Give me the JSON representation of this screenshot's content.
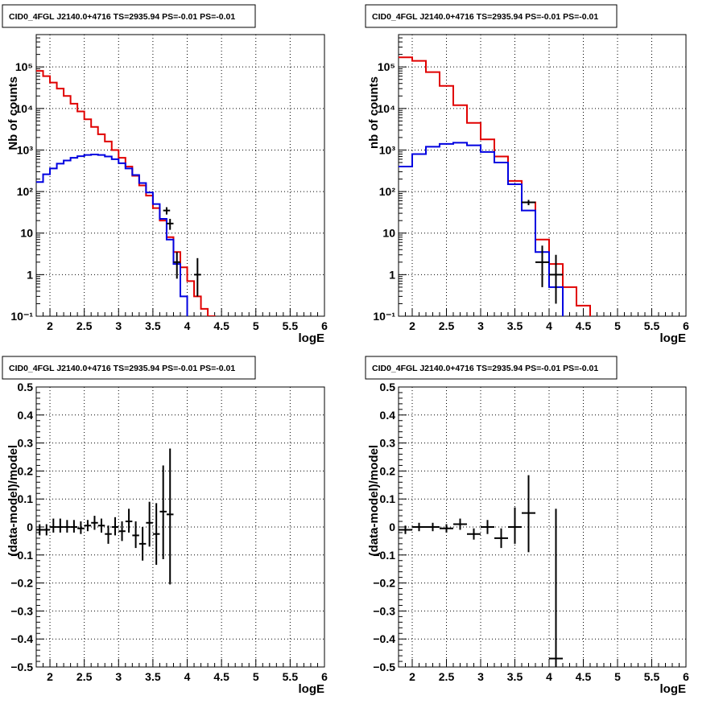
{
  "colors": {
    "data": "#000000",
    "model": "#e00000",
    "source": "#0000e0",
    "grid": "#000000"
  },
  "chart_data": [
    {
      "type": "step-histogram",
      "title": "CID0_4FGL J2140.0+4716 TS=2935.94 PS=-0.01 PS=-0.01",
      "xlabel": "logE",
      "ylabel": "Nb of counts",
      "log_y": true,
      "xlim": [
        1.8,
        6.0
      ],
      "ylim": [
        0.1,
        600000
      ],
      "x_ticks": [
        2,
        2.5,
        3,
        3.5,
        4,
        4.5,
        5,
        5.5,
        6
      ],
      "x_tick_labels": [
        "2",
        "2.5",
        "3",
        "3.5",
        "4",
        "4.5",
        "5",
        "5.5",
        "6"
      ],
      "y_ticks": [
        0.1,
        1,
        10,
        100,
        1000,
        10000,
        100000
      ],
      "y_tick_labels": [
        "10⁻¹",
        "1",
        "10",
        "10²",
        "10³",
        "10⁴",
        "10⁵"
      ],
      "grid": true,
      "bin_edges": [
        1.8,
        1.9,
        2.0,
        2.1,
        2.2,
        2.3,
        2.4,
        2.5,
        2.6,
        2.7,
        2.8,
        2.9,
        3.0,
        3.1,
        3.2,
        3.3,
        3.4,
        3.5,
        3.6,
        3.7,
        3.8,
        3.9,
        4.0,
        4.1,
        4.2,
        4.3,
        4.4,
        4.5,
        4.6,
        4.7,
        4.8,
        4.9,
        5.0,
        5.1,
        5.2,
        5.3,
        5.4,
        5.5,
        5.6,
        5.7,
        5.8,
        5.9,
        6.0
      ],
      "series": [
        {
          "name": "model",
          "color": "#e00000",
          "values": [
            80000,
            60000,
            42000,
            30000,
            20000,
            13000,
            8500,
            5500,
            3600,
            2400,
            1600,
            1000,
            650,
            400,
            240,
            140,
            80,
            40,
            20,
            8,
            3.5,
            1.5,
            0.7,
            0.3,
            0.15,
            0.1,
            0.05,
            0.05,
            0.05,
            0.05,
            0.05,
            0.05,
            0.05,
            0.05,
            0.05,
            0.05,
            0.05,
            0.05,
            0.05,
            0.05,
            0.05,
            0.05
          ]
        },
        {
          "name": "source",
          "color": "#0000e0",
          "values": [
            170,
            260,
            360,
            470,
            560,
            650,
            710,
            760,
            780,
            760,
            700,
            600,
            480,
            360,
            250,
            160,
            95,
            50,
            22,
            7,
            1.8,
            0.3,
            0.05,
            0.05,
            0.05,
            0.05,
            0.05,
            0.05,
            0.05,
            0.05,
            0.05,
            0.05,
            0.05,
            0.05,
            0.05,
            0.05,
            0.05,
            0.05,
            0.05,
            0.05,
            0.05,
            0.05
          ]
        }
      ],
      "data_points": [
        {
          "x": 3.7,
          "y": 35,
          "ylow": 28,
          "yhigh": 42,
          "xerr": 0.05
        },
        {
          "x": 3.75,
          "y": 17,
          "ylow": 12,
          "yhigh": 22,
          "xerr": 0.05
        },
        {
          "x": 3.85,
          "y": 2,
          "ylow": 0.8,
          "yhigh": 3.5,
          "xerr": 0.05
        },
        {
          "x": 4.15,
          "y": 1,
          "ylow": 0.3,
          "yhigh": 2.5,
          "xerr": 0.05
        }
      ]
    },
    {
      "type": "step-histogram",
      "title": "CID0_4FGL J2140.0+4716 TS=2935.94 PS=-0.01 PS=-0.01",
      "xlabel": "logE",
      "ylabel": "nb of counts",
      "log_y": true,
      "xlim": [
        1.8,
        6.0
      ],
      "ylim": [
        0.1,
        600000
      ],
      "x_ticks": [
        2,
        2.5,
        3,
        3.5,
        4,
        4.5,
        5,
        5.5,
        6
      ],
      "x_tick_labels": [
        "2",
        "2.5",
        "3",
        "3.5",
        "4",
        "4.5",
        "5",
        "5.5",
        "6"
      ],
      "y_ticks": [
        0.1,
        1,
        10,
        100,
        1000,
        10000,
        100000
      ],
      "y_tick_labels": [
        "10⁻¹",
        "1",
        "10",
        "10²",
        "10³",
        "10⁴",
        "10⁵"
      ],
      "grid": true,
      "bin_edges": [
        1.8,
        2.0,
        2.2,
        2.4,
        2.6,
        2.8,
        3.0,
        3.2,
        3.4,
        3.6,
        3.8,
        4.0,
        4.2,
        4.4,
        4.6,
        4.8,
        5.0,
        5.2,
        5.4,
        5.6,
        5.8,
        6.0
      ],
      "series": [
        {
          "name": "model",
          "color": "#e00000",
          "values": [
            170000,
            140000,
            75000,
            35000,
            12000,
            4500,
            1800,
            700,
            180,
            55,
            7,
            1.8,
            0.5,
            0.18,
            0.05,
            0.05,
            0.05,
            0.05,
            0.05,
            0.05,
            0.05
          ]
        },
        {
          "name": "source",
          "color": "#0000e0",
          "values": [
            400,
            800,
            1200,
            1400,
            1500,
            1300,
            900,
            500,
            150,
            35,
            3.5,
            0.5,
            0.05,
            0.05,
            0.05,
            0.05,
            0.05,
            0.05,
            0.05,
            0.05,
            0.05
          ]
        }
      ],
      "data_points": [
        {
          "x": 3.7,
          "y": 55,
          "ylow": 47,
          "yhigh": 63,
          "xerr": 0.1
        },
        {
          "x": 3.9,
          "y": 2,
          "ylow": 0.5,
          "yhigh": 5,
          "xerr": 0.1
        },
        {
          "x": 4.1,
          "y": 1,
          "ylow": 0.2,
          "yhigh": 3,
          "xerr": 0.1
        }
      ]
    },
    {
      "type": "errorbar",
      "title": "CID0_4FGL J2140.0+4716 TS=2935.94 PS=-0.01 PS=-0.01",
      "xlabel": "logE",
      "ylabel": "(data-model)/model",
      "log_y": false,
      "xlim": [
        1.8,
        6.0
      ],
      "ylim": [
        -0.5,
        0.5
      ],
      "x_ticks": [
        2,
        2.5,
        3,
        3.5,
        4,
        4.5,
        5,
        5.5,
        6
      ],
      "x_tick_labels": [
        "2",
        "2.5",
        "3",
        "3.5",
        "4",
        "4.5",
        "5",
        "5.5",
        "6"
      ],
      "y_ticks": [
        -0.5,
        -0.4,
        -0.3,
        -0.2,
        -0.1,
        0,
        0.1,
        0.2,
        0.3,
        0.4,
        0.5
      ],
      "y_tick_labels": [
        "−0.5",
        "−0.4",
        "−0.3",
        "−0.2",
        "−0.1",
        "0",
        "0.1",
        "0.2",
        "0.3",
        "0.4",
        "0.5"
      ],
      "grid": true,
      "data_points": [
        {
          "x": 1.85,
          "y": -0.01,
          "ylow": -0.03,
          "yhigh": 0.01,
          "xerr": 0.05
        },
        {
          "x": 1.95,
          "y": -0.01,
          "ylow": -0.03,
          "yhigh": 0.01,
          "xerr": 0.05
        },
        {
          "x": 2.05,
          "y": 0.0,
          "ylow": -0.02,
          "yhigh": 0.03,
          "xerr": 0.05
        },
        {
          "x": 2.15,
          "y": 0.0,
          "ylow": -0.02,
          "yhigh": 0.03,
          "xerr": 0.05
        },
        {
          "x": 2.25,
          "y": 0.0,
          "ylow": -0.02,
          "yhigh": 0.025,
          "xerr": 0.05
        },
        {
          "x": 2.35,
          "y": 0.0,
          "ylow": -0.02,
          "yhigh": 0.025,
          "xerr": 0.05
        },
        {
          "x": 2.45,
          "y": -0.005,
          "ylow": -0.025,
          "yhigh": 0.02,
          "xerr": 0.05
        },
        {
          "x": 2.55,
          "y": 0.005,
          "ylow": -0.015,
          "yhigh": 0.025,
          "xerr": 0.05
        },
        {
          "x": 2.65,
          "y": 0.015,
          "ylow": -0.01,
          "yhigh": 0.04,
          "xerr": 0.05
        },
        {
          "x": 2.75,
          "y": 0.005,
          "ylow": -0.02,
          "yhigh": 0.03,
          "xerr": 0.05
        },
        {
          "x": 2.85,
          "y": -0.025,
          "ylow": -0.06,
          "yhigh": 0.005,
          "xerr": 0.05
        },
        {
          "x": 2.95,
          "y": 0.0,
          "ylow": -0.03,
          "yhigh": 0.035,
          "xerr": 0.05
        },
        {
          "x": 3.05,
          "y": -0.015,
          "ylow": -0.05,
          "yhigh": 0.02,
          "xerr": 0.05
        },
        {
          "x": 3.15,
          "y": 0.02,
          "ylow": -0.02,
          "yhigh": 0.065,
          "xerr": 0.05
        },
        {
          "x": 3.25,
          "y": -0.03,
          "ylow": -0.075,
          "yhigh": 0.02,
          "xerr": 0.05
        },
        {
          "x": 3.35,
          "y": -0.06,
          "ylow": -0.12,
          "yhigh": 0.0,
          "xerr": 0.05
        },
        {
          "x": 3.45,
          "y": 0.015,
          "ylow": -0.07,
          "yhigh": 0.09,
          "xerr": 0.05
        },
        {
          "x": 3.55,
          "y": -0.025,
          "ylow": -0.135,
          "yhigh": 0.085,
          "xerr": 0.05
        },
        {
          "x": 3.65,
          "y": 0.055,
          "ylow": -0.115,
          "yhigh": 0.22,
          "xerr": 0.05
        },
        {
          "x": 3.75,
          "y": 0.045,
          "ylow": -0.205,
          "yhigh": 0.28,
          "xerr": 0.05
        }
      ]
    },
    {
      "type": "errorbar",
      "title": "CID0_4FGL J2140.0+4716 TS=2935.94 PS=-0.01 PS=-0.01",
      "xlabel": "logE",
      "ylabel": "(data-model)/model",
      "log_y": false,
      "xlim": [
        1.8,
        6.0
      ],
      "ylim": [
        -0.5,
        0.5
      ],
      "x_ticks": [
        2,
        2.5,
        3,
        3.5,
        4,
        4.5,
        5,
        5.5,
        6
      ],
      "x_tick_labels": [
        "2",
        "2.5",
        "3",
        "3.5",
        "4",
        "4.5",
        "5",
        "5.5",
        "6"
      ],
      "y_ticks": [
        -0.5,
        -0.4,
        -0.3,
        -0.2,
        -0.1,
        0,
        0.1,
        0.2,
        0.3,
        0.4,
        0.5
      ],
      "y_tick_labels": [
        "−0.5",
        "−0.4",
        "−0.3",
        "−0.2",
        "−0.1",
        "0",
        "0.1",
        "0.2",
        "0.3",
        "0.4",
        "0.5"
      ],
      "grid": true,
      "data_points": [
        {
          "x": 1.9,
          "y": -0.01,
          "ylow": -0.025,
          "yhigh": 0.005,
          "xerr": 0.1
        },
        {
          "x": 2.1,
          "y": 0.0,
          "ylow": -0.015,
          "yhigh": 0.015,
          "xerr": 0.1
        },
        {
          "x": 2.3,
          "y": 0.0,
          "ylow": -0.015,
          "yhigh": 0.015,
          "xerr": 0.1
        },
        {
          "x": 2.5,
          "y": -0.005,
          "ylow": -0.02,
          "yhigh": 0.01,
          "xerr": 0.1
        },
        {
          "x": 2.7,
          "y": 0.01,
          "ylow": -0.01,
          "yhigh": 0.03,
          "xerr": 0.1
        },
        {
          "x": 2.9,
          "y": -0.025,
          "ylow": -0.045,
          "yhigh": -0.005,
          "xerr": 0.1
        },
        {
          "x": 3.1,
          "y": 0.0,
          "ylow": -0.025,
          "yhigh": 0.025,
          "xerr": 0.1
        },
        {
          "x": 3.3,
          "y": -0.04,
          "ylow": -0.075,
          "yhigh": -0.005,
          "xerr": 0.1
        },
        {
          "x": 3.5,
          "y": 0.0,
          "ylow": -0.06,
          "yhigh": 0.07,
          "xerr": 0.1
        },
        {
          "x": 3.7,
          "y": 0.05,
          "ylow": -0.09,
          "yhigh": 0.185,
          "xerr": 0.1
        },
        {
          "x": 4.1,
          "y": -0.47,
          "ylow": -0.5,
          "yhigh": 0.065,
          "xerr": 0.1
        }
      ]
    }
  ]
}
